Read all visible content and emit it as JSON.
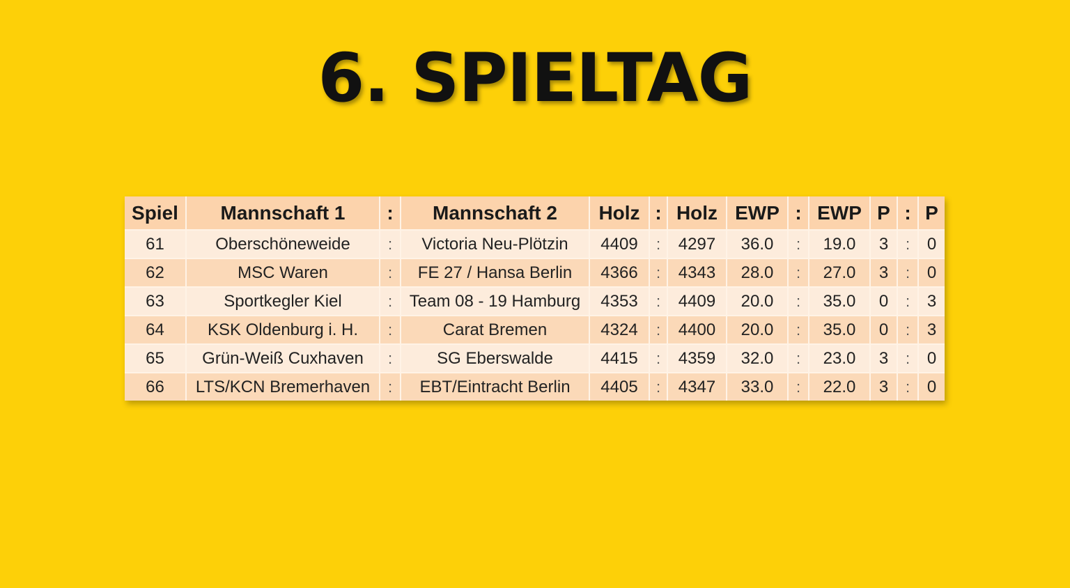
{
  "title": "6. SPIELTAG",
  "table": {
    "headers": [
      "Spiel",
      "Mannschaft 1",
      ":",
      "Mannschaft 2",
      "Holz",
      ":",
      "Holz",
      "EWP",
      ":",
      "EWP",
      "P",
      ":",
      "P"
    ],
    "rows": [
      {
        "spiel": "61",
        "team1": "Oberschöneweide",
        "sep": ":",
        "team2": "Victoria Neu-Plötzin",
        "holz1": "4409",
        "holz2": "4297",
        "ewp1": "36.0",
        "ewp2": "19.0",
        "p1": "3",
        "p2": "0"
      },
      {
        "spiel": "62",
        "team1": "MSC Waren",
        "sep": ":",
        "team2": "FE 27 / Hansa Berlin",
        "holz1": "4366",
        "holz2": "4343",
        "ewp1": "28.0",
        "ewp2": "27.0",
        "p1": "3",
        "p2": "0"
      },
      {
        "spiel": "63",
        "team1": "Sportkegler Kiel",
        "sep": ":",
        "team2": "Team 08 - 19 Hamburg",
        "holz1": "4353",
        "holz2": "4409",
        "ewp1": "20.0",
        "ewp2": "35.0",
        "p1": "0",
        "p2": "3"
      },
      {
        "spiel": "64",
        "team1": "KSK Oldenburg i. H.",
        "sep": ":",
        "team2": "Carat Bremen",
        "holz1": "4324",
        "holz2": "4400",
        "ewp1": "20.0",
        "ewp2": "35.0",
        "p1": "0",
        "p2": "3"
      },
      {
        "spiel": "65",
        "team1": "Grün-Weiß Cuxhaven",
        "sep": ":",
        "team2": "SG Eberswalde",
        "holz1": "4415",
        "holz2": "4359",
        "ewp1": "32.0",
        "ewp2": "23.0",
        "p1": "3",
        "p2": "0"
      },
      {
        "spiel": "66",
        "team1": "LTS/KCN Bremerhaven",
        "sep": ":",
        "team2": "EBT/Eintracht Berlin",
        "holz1": "4405",
        "holz2": "4347",
        "ewp1": "33.0",
        "ewp2": "22.0",
        "p1": "3",
        "p2": "0"
      }
    ]
  },
  "colors": {
    "background": "#fdd008",
    "header": "#fcd3ac",
    "row_light": "#fdecdc",
    "row_dark": "#fbd9b8"
  }
}
